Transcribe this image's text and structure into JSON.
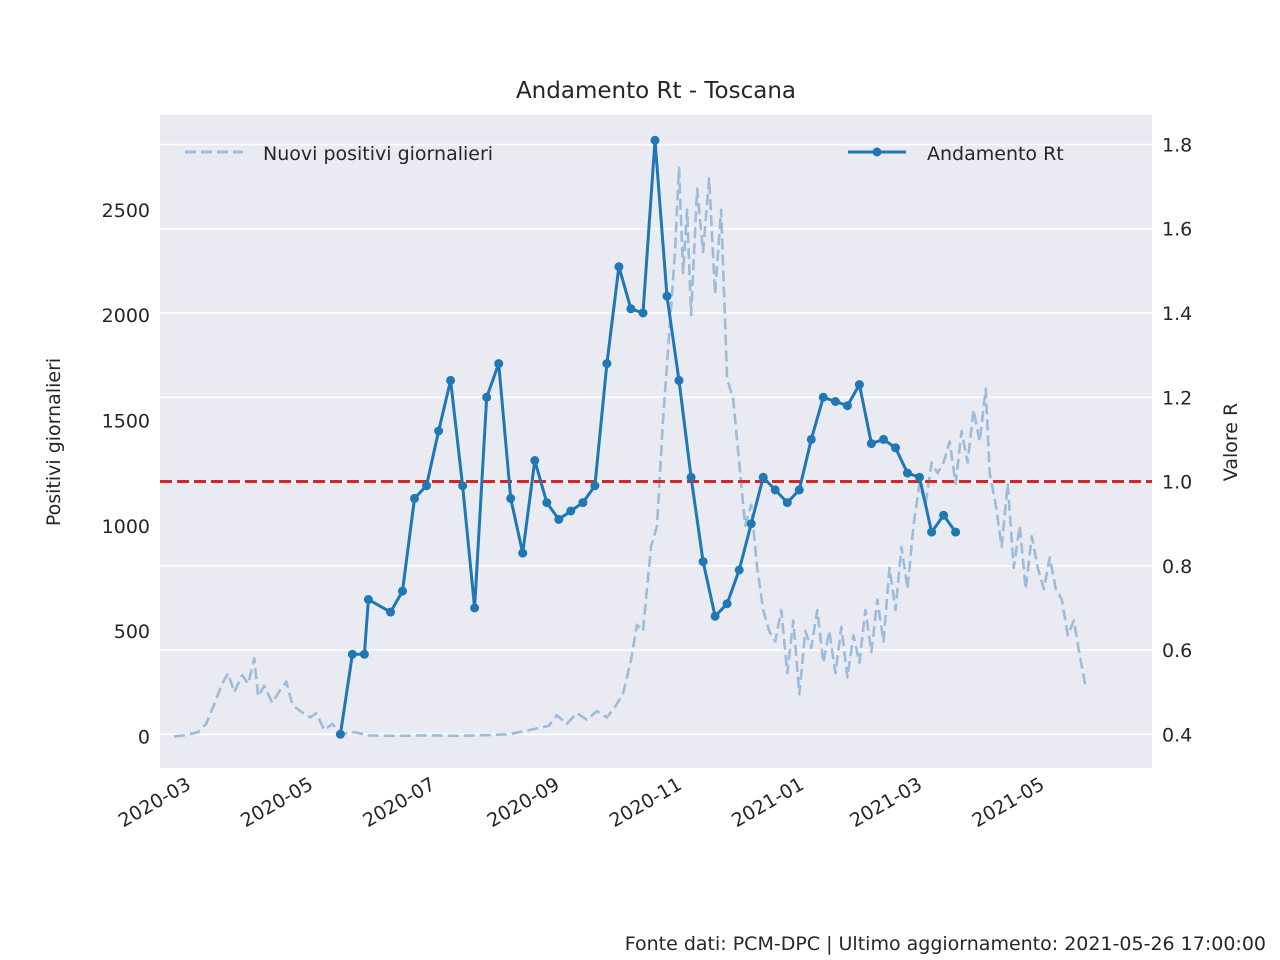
{
  "chart_data": {
    "type": "line",
    "title": "Andamento Rt - Toscana",
    "ylabel_left": "Positivi giornalieri",
    "ylabel_right": "Valore R",
    "footer": "Fonte dati: PCM-DPC | Ultimo aggiornamento: 2021-05-26 17:00:00",
    "x_range": [
      "2020-02-18",
      "2021-06-27"
    ],
    "ylim_left": [
      -150,
      2950
    ],
    "ylim_right": [
      0.32,
      1.87
    ],
    "x_ticks": [
      "2020-03",
      "2020-05",
      "2020-07",
      "2020-09",
      "2020-11",
      "2021-01",
      "2021-03",
      "2021-05"
    ],
    "y_ticks_left": [
      0,
      500,
      1000,
      1500,
      2000,
      2500
    ],
    "y_ticks_right": [
      0.4,
      0.6,
      0.8,
      1.0,
      1.2,
      1.4,
      1.6,
      1.8
    ],
    "grid": true,
    "reference_line": {
      "value": 1.0,
      "axis": "right",
      "color": "#d62728",
      "style": "dashed"
    },
    "legend": [
      {
        "label": "Nuovi positivi giornalieri",
        "position": "top-left",
        "color": "#9bbcdb",
        "style": "dashed"
      },
      {
        "label": "Andamento Rt",
        "position": "top-right",
        "color": "#1f77b4",
        "style": "line-marker"
      }
    ],
    "series": [
      {
        "name": "Nuovi positivi giornalieri",
        "axis": "left",
        "color": "#9bbcdb",
        "style": "dashed",
        "points": [
          [
            "2020-02-25",
            0
          ],
          [
            "2020-03-01",
            5
          ],
          [
            "2020-03-08",
            20
          ],
          [
            "2020-03-12",
            60
          ],
          [
            "2020-03-16",
            150
          ],
          [
            "2020-03-20",
            250
          ],
          [
            "2020-03-23",
            300
          ],
          [
            "2020-03-26",
            210
          ],
          [
            "2020-03-30",
            290
          ],
          [
            "2020-04-02",
            250
          ],
          [
            "2020-04-05",
            370
          ],
          [
            "2020-04-07",
            190
          ],
          [
            "2020-04-10",
            240
          ],
          [
            "2020-04-14",
            160
          ],
          [
            "2020-04-18",
            220
          ],
          [
            "2020-04-21",
            260
          ],
          [
            "2020-04-24",
            150
          ],
          [
            "2020-04-28",
            120
          ],
          [
            "2020-05-03",
            90
          ],
          [
            "2020-05-06",
            110
          ],
          [
            "2020-05-10",
            30
          ],
          [
            "2020-05-14",
            60
          ],
          [
            "2020-05-18",
            10
          ],
          [
            "2020-05-25",
            20
          ],
          [
            "2020-06-01",
            5
          ],
          [
            "2020-06-15",
            3
          ],
          [
            "2020-07-01",
            5
          ],
          [
            "2020-07-15",
            3
          ],
          [
            "2020-08-01",
            6
          ],
          [
            "2020-08-10",
            10
          ],
          [
            "2020-08-18",
            25
          ],
          [
            "2020-08-25",
            40
          ],
          [
            "2020-08-30",
            50
          ],
          [
            "2020-09-03",
            100
          ],
          [
            "2020-09-08",
            60
          ],
          [
            "2020-09-13",
            110
          ],
          [
            "2020-09-18",
            80
          ],
          [
            "2020-09-23",
            120
          ],
          [
            "2020-09-28",
            90
          ],
          [
            "2020-10-02",
            140
          ],
          [
            "2020-10-06",
            200
          ],
          [
            "2020-10-10",
            360
          ],
          [
            "2020-10-13",
            530
          ],
          [
            "2020-10-16",
            500
          ],
          [
            "2020-10-20",
            900
          ],
          [
            "2020-10-23",
            1000
          ],
          [
            "2020-10-26",
            1500
          ],
          [
            "2020-10-29",
            1900
          ],
          [
            "2020-11-01",
            2300
          ],
          [
            "2020-11-03",
            2700
          ],
          [
            "2020-11-05",
            2200
          ],
          [
            "2020-11-07",
            2500
          ],
          [
            "2020-11-09",
            2000
          ],
          [
            "2020-11-12",
            2600
          ],
          [
            "2020-11-15",
            2300
          ],
          [
            "2020-11-18",
            2650
          ],
          [
            "2020-11-21",
            2100
          ],
          [
            "2020-11-24",
            2500
          ],
          [
            "2020-11-27",
            1700
          ],
          [
            "2020-11-30",
            1600
          ],
          [
            "2020-12-03",
            1300
          ],
          [
            "2020-12-06",
            1000
          ],
          [
            "2020-12-09",
            1100
          ],
          [
            "2020-12-12",
            800
          ],
          [
            "2020-12-15",
            600
          ],
          [
            "2020-12-18",
            500
          ],
          [
            "2020-12-21",
            450
          ],
          [
            "2020-12-24",
            600
          ],
          [
            "2020-12-27",
            300
          ],
          [
            "2020-12-30",
            550
          ],
          [
            "2021-01-02",
            200
          ],
          [
            "2021-01-05",
            500
          ],
          [
            "2021-01-08",
            420
          ],
          [
            "2021-01-11",
            600
          ],
          [
            "2021-01-14",
            350
          ],
          [
            "2021-01-17",
            500
          ],
          [
            "2021-01-20",
            300
          ],
          [
            "2021-01-23",
            520
          ],
          [
            "2021-01-26",
            280
          ],
          [
            "2021-01-29",
            480
          ],
          [
            "2021-02-01",
            350
          ],
          [
            "2021-02-04",
            600
          ],
          [
            "2021-02-07",
            400
          ],
          [
            "2021-02-10",
            650
          ],
          [
            "2021-02-13",
            450
          ],
          [
            "2021-02-16",
            800
          ],
          [
            "2021-02-19",
            600
          ],
          [
            "2021-02-22",
            900
          ],
          [
            "2021-02-25",
            700
          ],
          [
            "2021-02-28",
            1000
          ],
          [
            "2021-03-03",
            1200
          ],
          [
            "2021-03-06",
            1100
          ],
          [
            "2021-03-09",
            1300
          ],
          [
            "2021-03-12",
            1250
          ],
          [
            "2021-03-15",
            1300
          ],
          [
            "2021-03-18",
            1400
          ],
          [
            "2021-03-21",
            1200
          ],
          [
            "2021-03-24",
            1450
          ],
          [
            "2021-03-27",
            1300
          ],
          [
            "2021-03-30",
            1550
          ],
          [
            "2021-04-02",
            1400
          ],
          [
            "2021-04-05",
            1650
          ],
          [
            "2021-04-07",
            1250
          ],
          [
            "2021-04-10",
            1100
          ],
          [
            "2021-04-13",
            900
          ],
          [
            "2021-04-16",
            1200
          ],
          [
            "2021-04-19",
            800
          ],
          [
            "2021-04-22",
            1000
          ],
          [
            "2021-04-25",
            700
          ],
          [
            "2021-04-28",
            950
          ],
          [
            "2021-05-01",
            800
          ],
          [
            "2021-05-04",
            700
          ],
          [
            "2021-05-07",
            850
          ],
          [
            "2021-05-10",
            700
          ],
          [
            "2021-05-13",
            650
          ],
          [
            "2021-05-16",
            480
          ],
          [
            "2021-05-19",
            550
          ],
          [
            "2021-05-22",
            380
          ],
          [
            "2021-05-25",
            230
          ]
        ]
      },
      {
        "name": "Andamento Rt",
        "axis": "right",
        "color": "#1f77b4",
        "style": "line-marker",
        "points": [
          [
            "2020-05-18",
            0.4
          ],
          [
            "2020-05-24",
            0.59
          ],
          [
            "2020-05-30",
            0.59
          ],
          [
            "2020-06-01",
            0.72
          ],
          [
            "2020-06-12",
            0.69
          ],
          [
            "2020-06-18",
            0.74
          ],
          [
            "2020-06-24",
            0.96
          ],
          [
            "2020-06-30",
            0.99
          ],
          [
            "2020-07-06",
            1.12
          ],
          [
            "2020-07-12",
            1.24
          ],
          [
            "2020-07-18",
            0.99
          ],
          [
            "2020-07-24",
            0.7
          ],
          [
            "2020-07-30",
            1.2
          ],
          [
            "2020-08-05",
            1.28
          ],
          [
            "2020-08-11",
            0.96
          ],
          [
            "2020-08-17",
            0.83
          ],
          [
            "2020-08-23",
            1.05
          ],
          [
            "2020-08-29",
            0.95
          ],
          [
            "2020-09-04",
            0.91
          ],
          [
            "2020-09-10",
            0.93
          ],
          [
            "2020-09-16",
            0.95
          ],
          [
            "2020-09-22",
            0.99
          ],
          [
            "2020-09-28",
            1.28
          ],
          [
            "2020-10-04",
            1.51
          ],
          [
            "2020-10-10",
            1.41
          ],
          [
            "2020-10-16",
            1.4
          ],
          [
            "2020-10-22",
            1.81
          ],
          [
            "2020-10-28",
            1.44
          ],
          [
            "2020-11-03",
            1.24
          ],
          [
            "2020-11-09",
            1.01
          ],
          [
            "2020-11-15",
            0.81
          ],
          [
            "2020-11-21",
            0.68
          ],
          [
            "2020-11-27",
            0.71
          ],
          [
            "2020-12-03",
            0.79
          ],
          [
            "2020-12-09",
            0.9
          ],
          [
            "2020-12-15",
            1.01
          ],
          [
            "2020-12-21",
            0.98
          ],
          [
            "2020-12-27",
            0.95
          ],
          [
            "2021-01-02",
            0.98
          ],
          [
            "2021-01-08",
            1.1
          ],
          [
            "2021-01-14",
            1.2
          ],
          [
            "2021-01-20",
            1.19
          ],
          [
            "2021-01-26",
            1.18
          ],
          [
            "2021-02-01",
            1.23
          ],
          [
            "2021-02-07",
            1.09
          ],
          [
            "2021-02-13",
            1.1
          ],
          [
            "2021-02-19",
            1.08
          ],
          [
            "2021-02-25",
            1.02
          ],
          [
            "2021-03-03",
            1.01
          ],
          [
            "2021-03-09",
            0.88
          ],
          [
            "2021-03-15",
            0.92
          ],
          [
            "2021-03-21",
            0.88
          ]
        ]
      }
    ]
  }
}
